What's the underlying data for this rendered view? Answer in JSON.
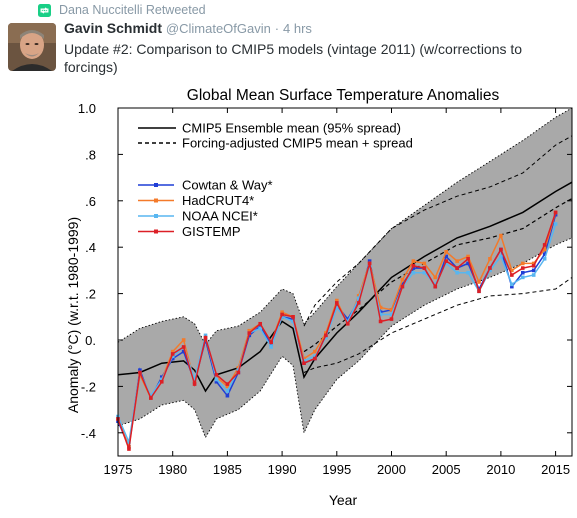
{
  "retweet": {
    "label": "Dana Nuccitelli Retweeted",
    "icon": "retweet-icon"
  },
  "tweet": {
    "author_name": "Gavin Schmidt",
    "author_handle": "@ClimateOfGavin",
    "separator": "·",
    "time": "4 hrs",
    "text": "Update #2: Comparison to CMIP5 models (vintage 2011) (w/corrections to forcings)"
  },
  "colors": {
    "cowtan_way": "#1f3ed6",
    "hadcrut4": "#f47a2a",
    "noaa_ncei": "#58b6f0",
    "gistemp": "#dc1f26",
    "envelope": "#a9a9a9"
  },
  "chart_data": {
    "type": "line",
    "title": "Global Mean Surface Temperature Anomalies",
    "xlabel": "Year",
    "ylabel": "Anomaly (°C) (w.r.t. 1980-1999)",
    "xlim": [
      1975,
      2016.5
    ],
    "ylim": [
      -0.5,
      1.0
    ],
    "x_ticks": [
      1975,
      1980,
      1985,
      1990,
      1995,
      2000,
      2005,
      2010,
      2015
    ],
    "x_tick_labels": [
      "1975",
      "1980",
      "1985",
      "1990",
      "1995",
      "2000",
      "2005",
      "2010",
      "2015"
    ],
    "y_ticks": [
      -0.4,
      -0.2,
      0.0,
      0.2,
      0.4,
      0.6,
      0.8,
      1.0
    ],
    "y_tick_labels": [
      "-.4",
      "-.2",
      "0.",
      ".2",
      ".4",
      ".6",
      ".8",
      "1.0"
    ],
    "legend_position": "top-left",
    "ensemble_legend": [
      {
        "label": "CMIP5 Ensemble mean (95% spread)",
        "style": "solid"
      },
      {
        "label": "Forcing-adjusted CMIP5 mean + spread",
        "style": "dashed"
      }
    ],
    "ensemble": {
      "years": [
        1975,
        1977,
        1979,
        1981,
        1982,
        1983,
        1984,
        1986,
        1988,
        1990,
        1991,
        1992,
        1993,
        1995,
        1997,
        2000,
        2003,
        2006,
        2009,
        2012,
        2015,
        2016.5
      ],
      "mean": [
        -0.15,
        -0.14,
        -0.1,
        -0.09,
        -0.13,
        -0.22,
        -0.15,
        -0.12,
        -0.05,
        0.08,
        0.05,
        -0.16,
        -0.08,
        0.03,
        0.12,
        0.27,
        0.36,
        0.44,
        0.49,
        0.55,
        0.64,
        0.68
      ],
      "upper": [
        -0.01,
        0.05,
        0.08,
        0.1,
        0.07,
        -0.02,
        0.04,
        0.06,
        0.12,
        0.22,
        0.2,
        0.07,
        0.12,
        0.23,
        0.33,
        0.48,
        0.58,
        0.68,
        0.77,
        0.86,
        0.96,
        1.0
      ],
      "lower": [
        -0.37,
        -0.34,
        -0.28,
        -0.26,
        -0.3,
        -0.42,
        -0.34,
        -0.3,
        -0.22,
        -0.07,
        -0.11,
        -0.4,
        -0.3,
        -0.17,
        -0.09,
        0.06,
        0.15,
        0.22,
        0.27,
        0.33,
        0.41,
        0.44
      ]
    },
    "adjusted": {
      "years": [
        1992,
        1993,
        1995,
        1997,
        2000,
        2003,
        2006,
        2009,
        2012,
        2015,
        2016.5
      ],
      "mean": [
        -0.05,
        -0.02,
        0.06,
        0.13,
        0.25,
        0.33,
        0.41,
        0.44,
        0.48,
        0.57,
        0.61
      ],
      "upper": [
        0.06,
        0.15,
        0.25,
        0.33,
        0.48,
        0.56,
        0.62,
        0.66,
        0.72,
        0.84,
        0.88
      ],
      "lower": [
        -0.14,
        -0.12,
        -0.1,
        -0.06,
        0.03,
        0.09,
        0.15,
        0.19,
        0.2,
        0.22,
        0.27
      ]
    },
    "years": [
      1975,
      1976,
      1977,
      1978,
      1979,
      1980,
      1981,
      1982,
      1983,
      1984,
      1985,
      1986,
      1987,
      1988,
      1989,
      1990,
      1991,
      1992,
      1993,
      1994,
      1995,
      1996,
      1997,
      1998,
      1999,
      2000,
      2001,
      2002,
      2003,
      2004,
      2005,
      2006,
      2007,
      2008,
      2009,
      2010,
      2011,
      2012,
      2013,
      2014,
      2015
    ],
    "series": [
      {
        "name": "Cowtan & Way*",
        "color_key": "cowtan_way",
        "values": [
          -0.35,
          -0.46,
          -0.13,
          -0.25,
          -0.16,
          -0.08,
          -0.05,
          -0.18,
          0.0,
          -0.18,
          -0.24,
          -0.14,
          0.02,
          0.06,
          -0.02,
          0.1,
          0.09,
          -0.1,
          -0.08,
          0.02,
          0.15,
          0.09,
          0.17,
          0.34,
          0.12,
          0.13,
          0.24,
          0.31,
          0.31,
          0.23,
          0.36,
          0.31,
          0.33,
          0.22,
          0.31,
          0.39,
          0.23,
          0.29,
          0.3,
          0.37,
          0.54
        ]
      },
      {
        "name": "HadCRUT4*",
        "color_key": "hadcrut4",
        "values": [
          -0.34,
          -0.46,
          -0.15,
          -0.25,
          -0.17,
          -0.05,
          0.0,
          -0.18,
          0.01,
          -0.16,
          -0.2,
          -0.12,
          0.04,
          0.07,
          -0.01,
          0.12,
          0.1,
          -0.08,
          -0.05,
          0.03,
          0.17,
          0.07,
          0.19,
          0.33,
          0.14,
          0.13,
          0.26,
          0.34,
          0.33,
          0.27,
          0.38,
          0.34,
          0.36,
          0.25,
          0.35,
          0.45,
          0.3,
          0.33,
          0.33,
          0.39,
          0.55
        ]
      },
      {
        "name": "NOAA NCEI*",
        "color_key": "noaa_ncei",
        "values": [
          -0.33,
          -0.44,
          -0.14,
          -0.24,
          -0.17,
          -0.07,
          -0.03,
          -0.17,
          0.02,
          -0.17,
          -0.22,
          -0.13,
          0.03,
          0.05,
          -0.03,
          0.1,
          0.08,
          -0.09,
          -0.07,
          0.01,
          0.14,
          0.08,
          0.18,
          0.32,
          0.11,
          0.11,
          0.23,
          0.29,
          0.29,
          0.24,
          0.33,
          0.29,
          0.29,
          0.21,
          0.3,
          0.36,
          0.24,
          0.27,
          0.28,
          0.35,
          0.5
        ]
      },
      {
        "name": "GISTEMP",
        "color_key": "gistemp",
        "values": [
          -0.34,
          -0.47,
          -0.14,
          -0.25,
          -0.18,
          -0.06,
          -0.03,
          -0.19,
          0.01,
          -0.15,
          -0.19,
          -0.14,
          0.03,
          0.07,
          -0.01,
          0.11,
          0.1,
          -0.1,
          -0.08,
          0.02,
          0.16,
          0.07,
          0.16,
          0.33,
          0.08,
          0.09,
          0.23,
          0.32,
          0.31,
          0.23,
          0.34,
          0.31,
          0.35,
          0.21,
          0.31,
          0.39,
          0.28,
          0.31,
          0.32,
          0.41,
          0.55
        ]
      }
    ]
  }
}
